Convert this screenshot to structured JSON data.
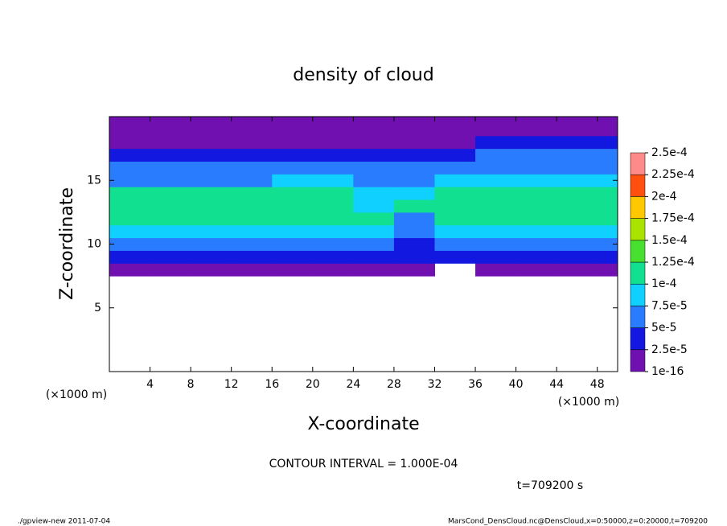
{
  "chart_data": {
    "type": "heatmap",
    "title": "density of cloud",
    "x_label": "X-coordinate",
    "y_label": "Z-coordinate",
    "x_unit_label": "(×1000 m)",
    "y_unit_label": "(×1000 m)",
    "xlim": [
      0,
      50
    ],
    "xticks": [
      4,
      8,
      12,
      16,
      20,
      24,
      28,
      32,
      36,
      40,
      44,
      48
    ],
    "ylim": [
      0,
      20
    ],
    "yticks": [
      5,
      10,
      15
    ],
    "x": [
      2,
      6,
      10,
      14,
      18,
      22,
      26,
      30,
      34,
      38,
      42,
      46,
      50
    ],
    "y": [
      8,
      9,
      10,
      11,
      12,
      13,
      14,
      15,
      16,
      17,
      18,
      19
    ],
    "values": [
      [
        2e-05,
        2e-05,
        2e-05,
        2e-05,
        2e-05,
        2e-05,
        2e-05,
        2e-05,
        null,
        2e-05,
        2e-05,
        2e-05,
        2e-05
      ],
      [
        4e-05,
        4e-05,
        4e-05,
        4e-05,
        4e-05,
        4e-05,
        4e-05,
        3e-05,
        3e-05,
        4e-05,
        4e-05,
        4e-05,
        4e-05
      ],
      [
        6e-05,
        6e-05,
        6e-05,
        6e-05,
        6e-05,
        6e-05,
        6e-05,
        4e-05,
        6e-05,
        6e-05,
        6e-05,
        6e-05,
        6e-05
      ],
      [
        9e-05,
        9e-05,
        9e-05,
        9e-05,
        9e-05,
        9e-05,
        9e-05,
        5e-05,
        9e-05,
        9e-05,
        9e-05,
        9e-05,
        9e-05
      ],
      [
        0.00011,
        0.00011,
        0.00011,
        0.00011,
        0.00011,
        0.00011,
        0.000105,
        6e-05,
        0.00011,
        0.00011,
        0.00011,
        0.00011,
        0.00011
      ],
      [
        0.000115,
        0.000115,
        0.00011,
        0.000115,
        0.00012,
        0.000115,
        9e-05,
        0.000105,
        0.000115,
        0.000115,
        0.000115,
        0.000115,
        0.00011
      ],
      [
        0.000105,
        0.000105,
        0.000105,
        0.000105,
        0.000115,
        0.000115,
        8e-05,
        9e-05,
        0.000105,
        0.00011,
        0.00011,
        0.00011,
        0.00011
      ],
      [
        7e-05,
        7e-05,
        7e-05,
        7e-05,
        8e-05,
        8e-05,
        7e-05,
        7e-05,
        8e-05,
        9e-05,
        9e-05,
        9e-05,
        9e-05
      ],
      [
        5e-05,
        5e-05,
        5e-05,
        5e-05,
        5e-05,
        5e-05,
        5e-05,
        5e-05,
        6e-05,
        7e-05,
        7e-05,
        7e-05,
        7e-05
      ],
      [
        3.5e-05,
        3.5e-05,
        3.5e-05,
        3.5e-05,
        3.5e-05,
        3.5e-05,
        3e-05,
        3e-05,
        4e-05,
        5e-05,
        5e-05,
        5e-05,
        5e-05
      ],
      [
        2e-05,
        2e-05,
        2e-05,
        2e-05,
        2e-05,
        2e-05,
        2e-05,
        2e-05,
        2e-05,
        2.5e-05,
        2.5e-05,
        2.5e-05,
        2.5e-05
      ],
      [
        1e-05,
        1e-05,
        1e-05,
        1e-05,
        1e-05,
        1e-05,
        1e-05,
        1e-05,
        1e-05,
        1.5e-05,
        1.5e-05,
        1.5e-05,
        1.5e-05
      ]
    ],
    "colorbar": {
      "levels": [
        {
          "value": 1e-16,
          "label": "1e-16"
        },
        {
          "value": 2.5e-05,
          "label": "2.5e-5"
        },
        {
          "value": 5e-05,
          "label": "5e-5"
        },
        {
          "value": 7.5e-05,
          "label": "7.5e-5"
        },
        {
          "value": 0.0001,
          "label": "1e-4"
        },
        {
          "value": 0.000125,
          "label": "1.25e-4"
        },
        {
          "value": 0.00015,
          "label": "1.5e-4"
        },
        {
          "value": 0.000175,
          "label": "1.75e-4"
        },
        {
          "value": 0.0002,
          "label": "2e-4"
        },
        {
          "value": 0.000225,
          "label": "2.25e-4"
        },
        {
          "value": 0.00025,
          "label": "2.5e-4"
        }
      ],
      "colors": [
        "#7010b0",
        "#1218e0",
        "#2a7cff",
        "#10d0ff",
        "#10e090",
        "#48e030",
        "#a8e400",
        "#ffc800",
        "#ff5010",
        "#ff8a8a"
      ]
    },
    "contour_note": "CONTOUR INTERVAL = 1.000E-04",
    "time_note": "t=709200 s",
    "footer_left": "./gpview-new  2011-07-04",
    "footer_right": "MarsCond_DensCloud.nc@DensCloud,x=0:50000,z=0:20000,t=709200"
  }
}
